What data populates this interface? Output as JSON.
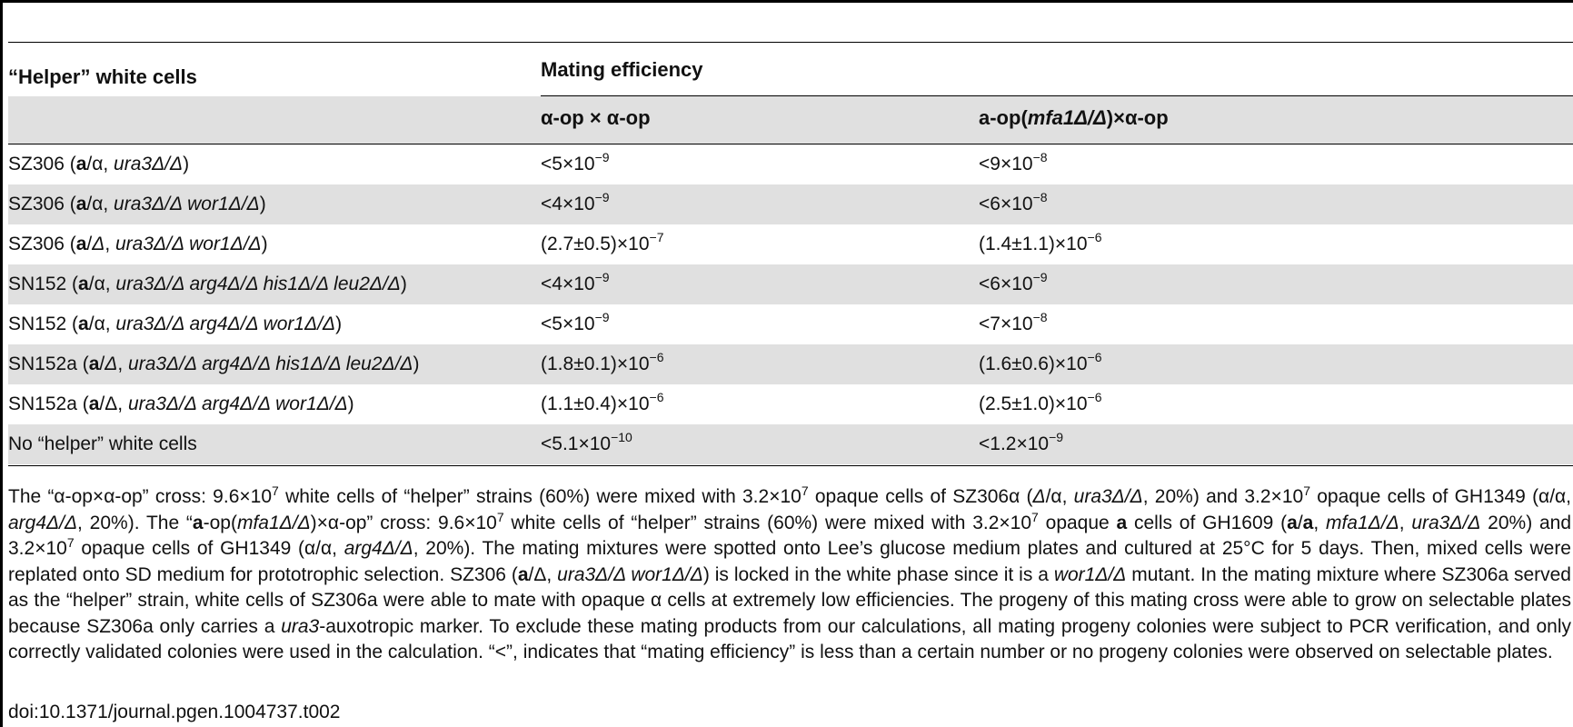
{
  "table": {
    "col_header_1": "“Helper” white cells",
    "col_header_group": "Mating efficiency",
    "subheader_1": "α-op × α-op",
    "subheader_2_prefix": "a-op(",
    "subheader_2_gene": "mfa1Δ/Δ",
    "subheader_2_suffix": ")×α-op",
    "rows": [
      {
        "strain_html": "SZ306 (<b>a</b>/α, <i>ura3Δ/Δ</i>)",
        "alpha_alpha_html": "&lt;5×10<sup>−9</sup>",
        "a_alpha_html": "&lt;9×10<sup>−8</sup>"
      },
      {
        "strain_html": "SZ306 (<b>a</b>/α, <i>ura3Δ/Δ wor1Δ/Δ</i>)",
        "alpha_alpha_html": "&lt;4×10<sup>−9</sup>",
        "a_alpha_html": "&lt;6×10<sup>−8</sup>"
      },
      {
        "strain_html": "SZ306 (<b>a</b>/<i>Δ</i>, <i>ura3Δ/Δ wor1Δ/Δ</i>)",
        "alpha_alpha_html": "(2.7±0.5)×10<sup>−7</sup>",
        "a_alpha_html": "(1.4±1.1)×10<sup>−6</sup>"
      },
      {
        "strain_html": "SN152 (<b>a</b>/α, <i>ura3Δ/Δ arg4Δ/Δ his1Δ/Δ leu2Δ/Δ</i>)",
        "alpha_alpha_html": "&lt;4×10<sup>−9</sup>",
        "a_alpha_html": "&lt;6×10<sup>−9</sup>"
      },
      {
        "strain_html": "SN152 (<b>a</b>/α, <i>ura3Δ/Δ arg4Δ/Δ wor1Δ/Δ</i>)",
        "alpha_alpha_html": "&lt;5×10<sup>−9</sup>",
        "a_alpha_html": "&lt;7×10<sup>−8</sup>"
      },
      {
        "strain_html": "SN152a (<b>a</b>/<i>Δ</i>, <i>ura3Δ/Δ arg4Δ/Δ his1Δ/Δ leu2Δ/Δ</i>)",
        "alpha_alpha_html": "(1.8±0.1)×10<sup>−6</sup>",
        "a_alpha_html": "(1.6±0.6)×10<sup>−6</sup>"
      },
      {
        "strain_html": "SN152a (<b>a</b>/Δ, <i>ura3Δ/Δ arg4Δ/Δ wor1Δ/Δ</i>)",
        "alpha_alpha_html": "(1.1±0.4)×10<sup>−6</sup>",
        "a_alpha_html": "(2.5±1.0)×10<sup>−6</sup>"
      },
      {
        "strain_html": "No “helper” white cells",
        "alpha_alpha_html": "&lt;5.1×10<sup>−10</sup>",
        "a_alpha_html": "&lt;1.2×10<sup>−9</sup>"
      }
    ]
  },
  "footnote_html": "The “α-op×α-op” cross: 9.6×10<sup>7</sup> white cells of “helper” strains (60%) were mixed with 3.2×10<sup>7</sup> opaque cells of SZ306α (<i>Δ</i>/α, <i>ura3Δ/Δ</i>, 20%) and 3.2×10<sup>7</sup> opaque cells of GH1349 (α/α, <i>arg4Δ/Δ</i>, 20%). The “<b>a</b>-op(<i>mfa1Δ/Δ</i>)×α-op” cross: 9.6×10<sup>7</sup> white cells of “helper” strains (60%) were mixed with 3.2×10<sup>7</sup> opaque <b>a</b> cells of GH1609 (<b>a</b>/<b>a</b>, <i>mfa1Δ/Δ</i>, <i>ura3Δ/Δ</i> 20%) and 3.2×10<sup>7</sup> opaque cells of GH1349 (α/α, <i>arg4Δ/Δ</i>, 20%). The mating mixtures were spotted onto Lee’s glucose medium plates and cultured at 25°C for 5 days. Then, mixed cells were replated onto SD medium for prototrophic selection. SZ306 (<b>a</b>/Δ, <i>ura3Δ/Δ wor1Δ/Δ</i>) is locked in the white phase since it is a <i>wor1Δ/Δ</i> mutant. In the mating mixture where SZ306a served as the “helper” strain, white cells of SZ306a were able to mate with opaque α cells at extremely low efficiencies. The progeny of this mating cross were able to grow on selectable plates because SZ306a only carries a <i>ura3</i>-auxotropic marker. To exclude these mating products from our calculations, all mating progeny colonies were subject to PCR verification, and only correctly validated colonies were used in the calculation. “&lt;”, indicates that “mating efficiency” is less than a certain number or no progeny colonies were observed on selectable plates.",
  "doi": "doi:10.1371/journal.pgen.1004737.t002"
}
